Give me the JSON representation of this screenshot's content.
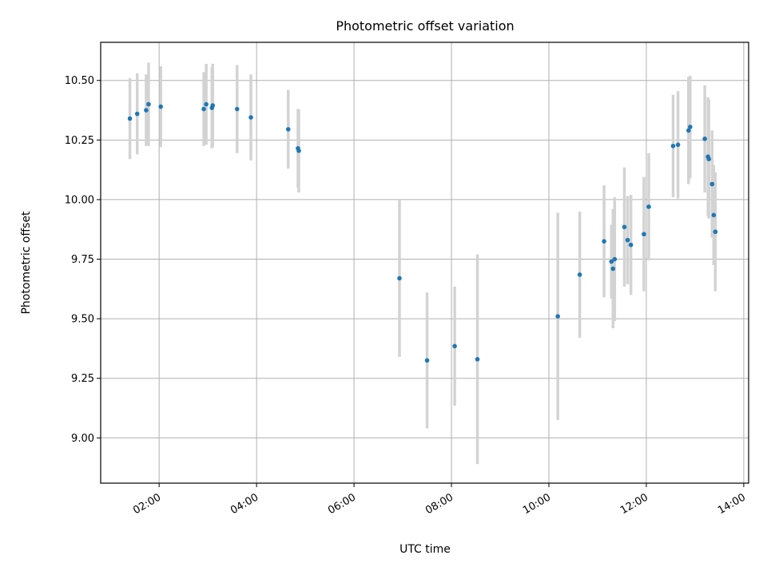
{
  "chart_data": {
    "type": "scatter",
    "title": "Photometric offset variation",
    "xlabel": "UTC time",
    "ylabel": "Photometric offset",
    "grid": true,
    "xlim": [
      "00:48",
      "14:06"
    ],
    "ylim": [
      8.81,
      10.66
    ],
    "x_ticks": [
      "02:00",
      "04:00",
      "06:00",
      "08:00",
      "10:00",
      "12:00",
      "14:00"
    ],
    "y_ticks": [
      "9.00",
      "9.25",
      "9.50",
      "9.75",
      "10.00",
      "10.25",
      "10.50"
    ],
    "point_color": "#1f77b4",
    "errorbar_color": "#d3d3d3",
    "points": [
      {
        "t": "01:24",
        "y": 10.34,
        "err": 0.17
      },
      {
        "t": "01:33",
        "y": 10.36,
        "err": 0.17
      },
      {
        "t": "01:44",
        "y": 10.375,
        "err": 0.15
      },
      {
        "t": "01:47",
        "y": 10.4,
        "err": 0.175
      },
      {
        "t": "02:02",
        "y": 10.39,
        "err": 0.17
      },
      {
        "t": "02:55",
        "y": 10.38,
        "err": 0.155
      },
      {
        "t": "02:58",
        "y": 10.4,
        "err": 0.17
      },
      {
        "t": "03:05",
        "y": 10.385,
        "err": 0.17
      },
      {
        "t": "03:06",
        "y": 10.395,
        "err": 0.175
      },
      {
        "t": "03:36",
        "y": 10.38,
        "err": 0.185
      },
      {
        "t": "03:53",
        "y": 10.345,
        "err": 0.18
      },
      {
        "t": "04:39",
        "y": 10.295,
        "err": 0.165
      },
      {
        "t": "04:51",
        "y": 10.215,
        "err": 0.165
      },
      {
        "t": "04:52",
        "y": 10.205,
        "err": 0.175
      },
      {
        "t": "06:56",
        "y": 9.67,
        "err": 0.33
      },
      {
        "t": "07:30",
        "y": 9.325,
        "err": 0.285
      },
      {
        "t": "08:04",
        "y": 9.385,
        "err": 0.25
      },
      {
        "t": "08:32",
        "y": 9.33,
        "err": 0.44
      },
      {
        "t": "10:11",
        "y": 9.51,
        "err": 0.435
      },
      {
        "t": "10:38",
        "y": 9.685,
        "err": 0.265
      },
      {
        "t": "11:08",
        "y": 9.825,
        "err": 0.235
      },
      {
        "t": "11:17",
        "y": 9.74,
        "err": 0.155
      },
      {
        "t": "11:19",
        "y": 9.71,
        "err": 0.25
      },
      {
        "t": "11:21",
        "y": 9.75,
        "err": 0.26
      },
      {
        "t": "11:33",
        "y": 9.885,
        "err": 0.25
      },
      {
        "t": "11:37",
        "y": 9.83,
        "err": 0.185
      },
      {
        "t": "11:41",
        "y": 9.81,
        "err": 0.21
      },
      {
        "t": "11:57",
        "y": 9.855,
        "err": 0.24
      },
      {
        "t": "12:03",
        "y": 9.97,
        "err": 0.225
      },
      {
        "t": "12:33",
        "y": 10.225,
        "err": 0.215
      },
      {
        "t": "12:39",
        "y": 10.23,
        "err": 0.225
      },
      {
        "t": "12:52",
        "y": 10.29,
        "err": 0.225
      },
      {
        "t": "12:54",
        "y": 10.305,
        "err": 0.215
      },
      {
        "t": "13:12",
        "y": 10.255,
        "err": 0.225
      },
      {
        "t": "13:16",
        "y": 10.18,
        "err": 0.25
      },
      {
        "t": "13:17",
        "y": 10.17,
        "err": 0.25
      },
      {
        "t": "13:21",
        "y": 10.065,
        "err": 0.225
      },
      {
        "t": "13:23",
        "y": 9.935,
        "err": 0.21
      },
      {
        "t": "13:25",
        "y": 9.865,
        "err": 0.25
      }
    ]
  }
}
